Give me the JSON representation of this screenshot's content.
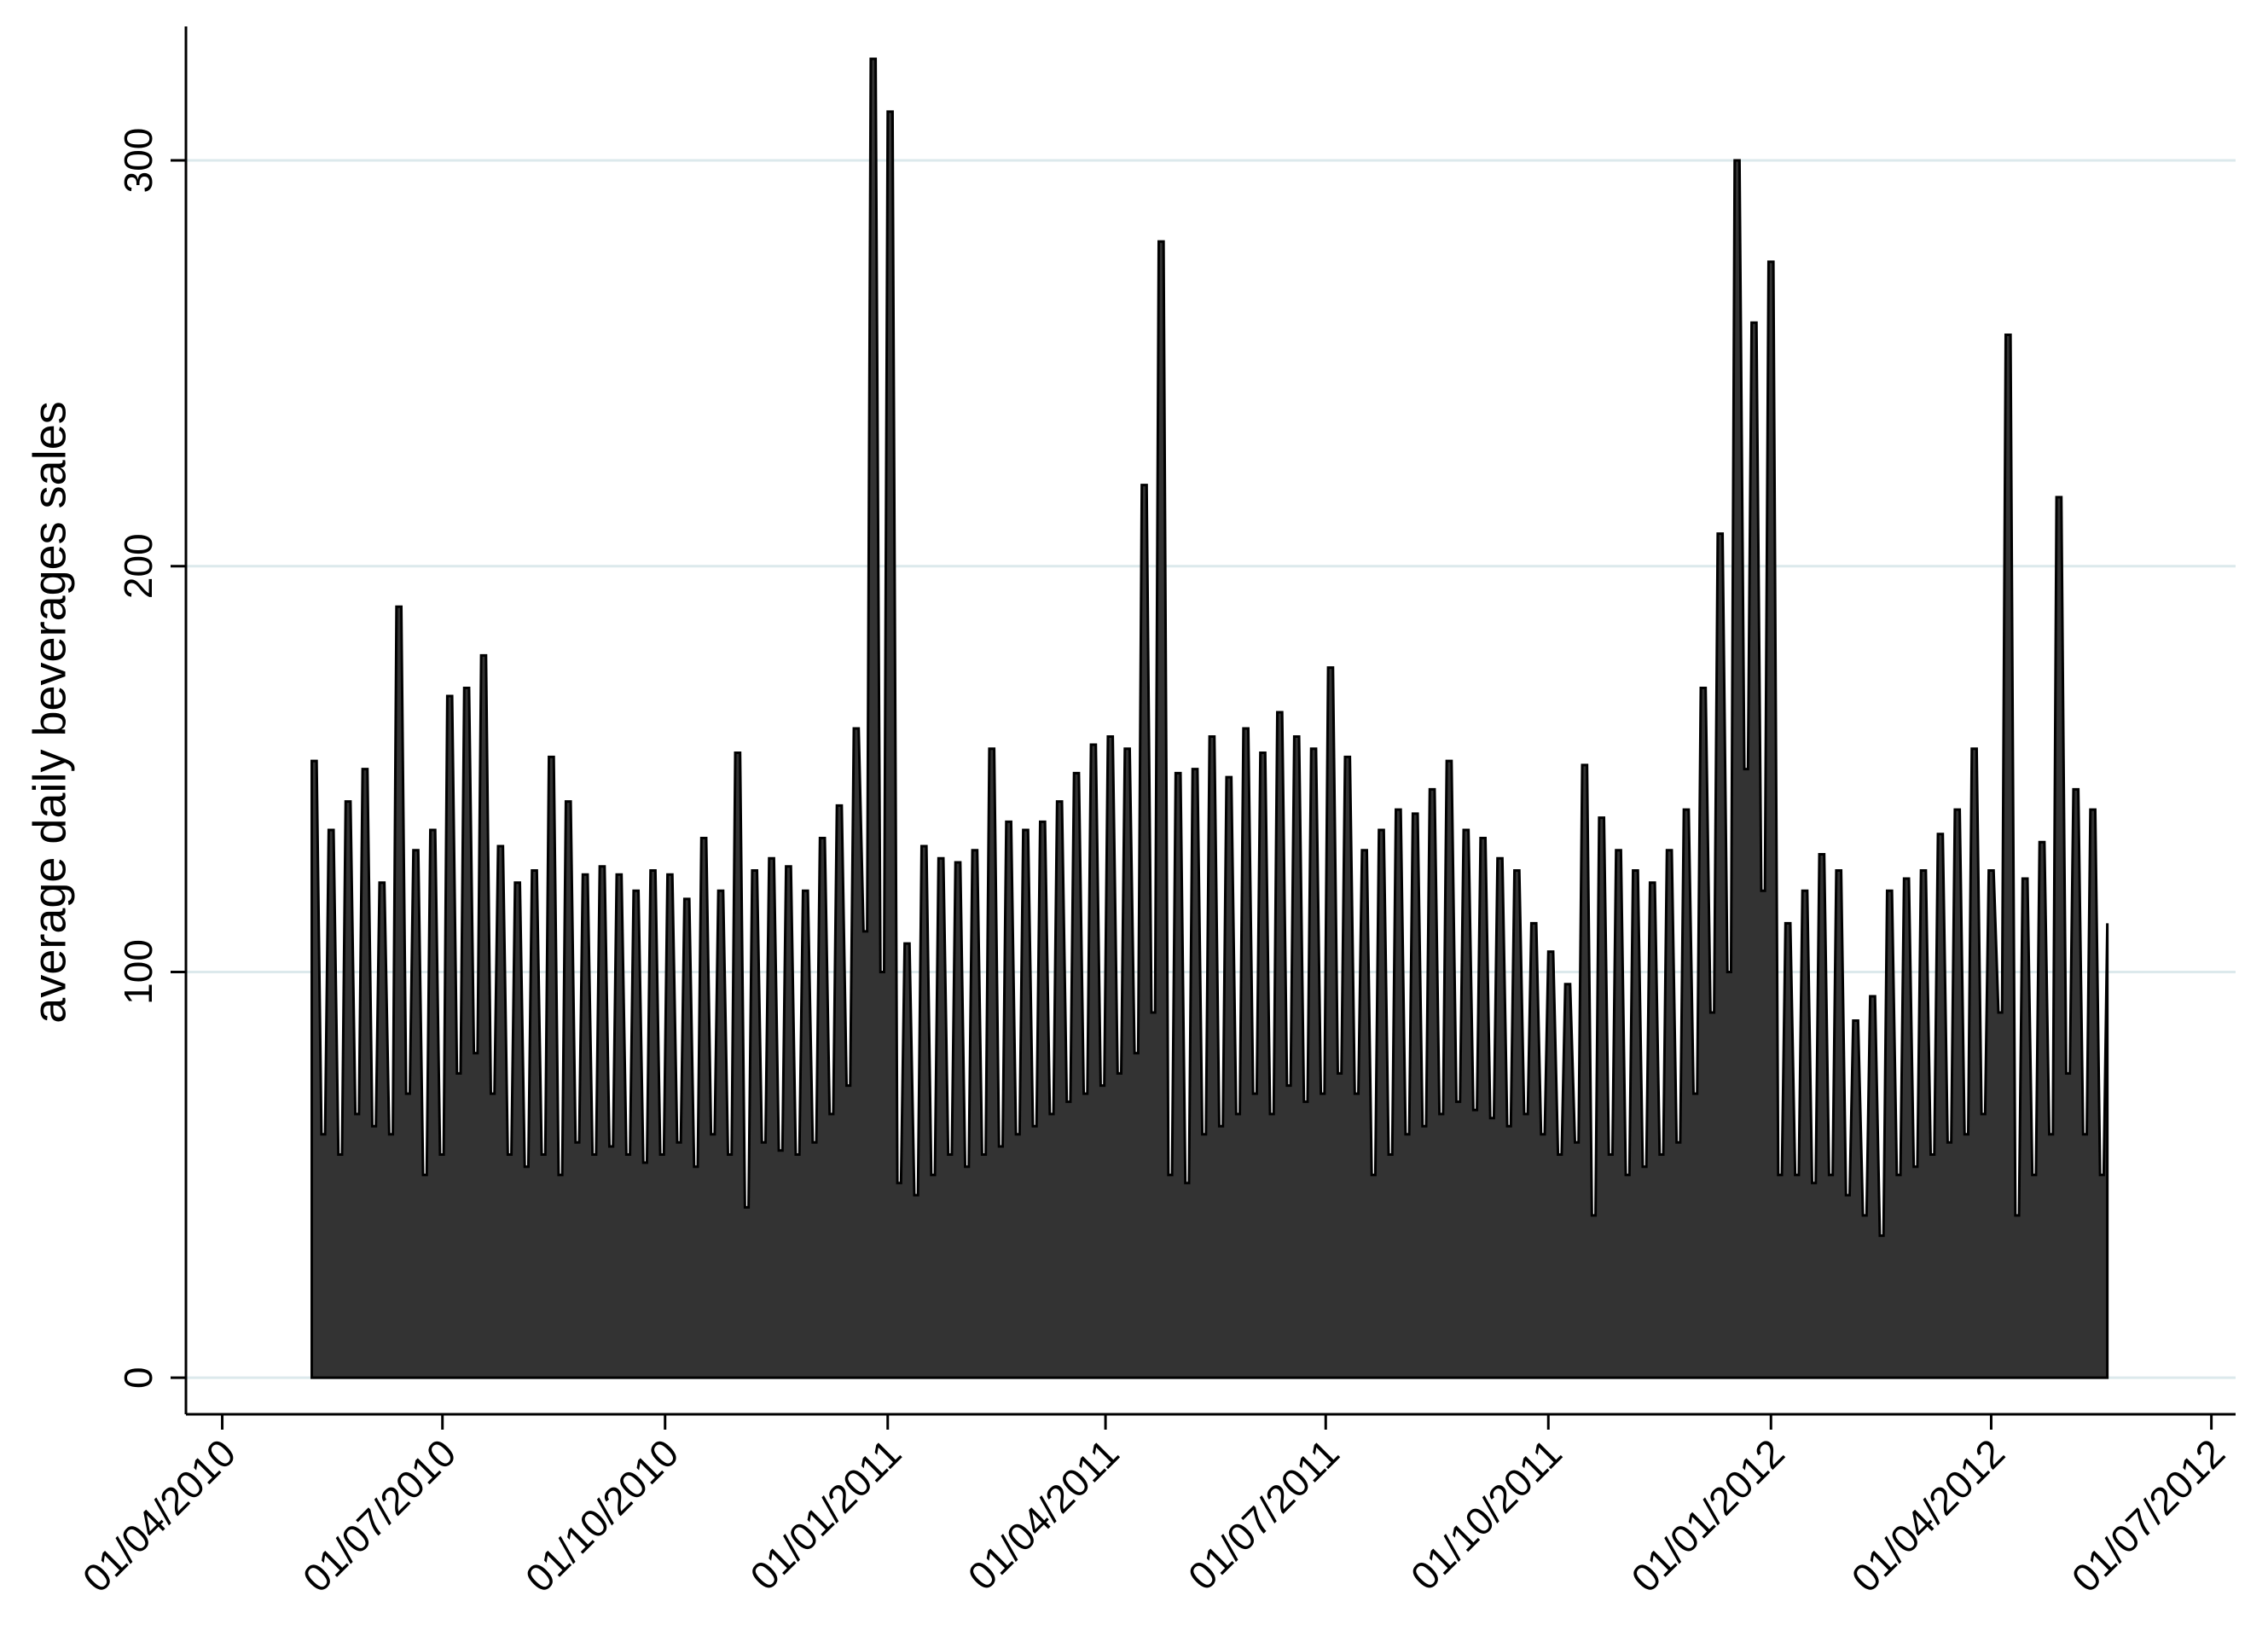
{
  "chart_data": {
    "type": "area",
    "y_label": "average daily beverages sales",
    "xlim": [
      "2010-03-17",
      "2012-07-11"
    ],
    "xticks": [
      {
        "value": "2010-04-01",
        "label": "01/04/2010"
      },
      {
        "value": "2010-07-01",
        "label": "01/07/2010"
      },
      {
        "value": "2010-10-01",
        "label": "01/10/2010"
      },
      {
        "value": "2011-01-01",
        "label": "01/01/2011"
      },
      {
        "value": "2011-04-01",
        "label": "01/04/2011"
      },
      {
        "value": "2011-07-01",
        "label": "01/07/2011"
      },
      {
        "value": "2011-10-01",
        "label": "01/10/2011"
      },
      {
        "value": "2012-01-01",
        "label": "01/01/2012"
      },
      {
        "value": "2012-04-01",
        "label": "01/04/2012"
      },
      {
        "value": "2012-07-01",
        "label": "01/07/2012"
      }
    ],
    "ylim": [
      -9,
      333
    ],
    "yticks": [
      0,
      100,
      200,
      300
    ],
    "grid": true,
    "grid_color": "#dce9ec",
    "x": [
      "2010-05-08",
      "2010-05-12",
      "2010-05-15",
      "2010-05-19",
      "2010-05-22",
      "2010-05-26",
      "2010-05-29",
      "2010-06-02",
      "2010-06-05",
      "2010-06-09",
      "2010-06-12",
      "2010-06-16",
      "2010-06-19",
      "2010-06-23",
      "2010-06-26",
      "2010-06-30",
      "2010-07-03",
      "2010-07-07",
      "2010-07-10",
      "2010-07-14",
      "2010-07-17",
      "2010-07-21",
      "2010-07-24",
      "2010-07-28",
      "2010-07-31",
      "2010-08-04",
      "2010-08-07",
      "2010-08-11",
      "2010-08-14",
      "2010-08-18",
      "2010-08-21",
      "2010-08-25",
      "2010-08-28",
      "2010-09-01",
      "2010-09-04",
      "2010-09-08",
      "2010-09-11",
      "2010-09-15",
      "2010-09-18",
      "2010-09-22",
      "2010-09-25",
      "2010-09-29",
      "2010-10-02",
      "2010-10-06",
      "2010-10-09",
      "2010-10-13",
      "2010-10-16",
      "2010-10-20",
      "2010-10-23",
      "2010-10-27",
      "2010-10-30",
      "2010-11-03",
      "2010-11-06",
      "2010-11-10",
      "2010-11-13",
      "2010-11-17",
      "2010-11-20",
      "2010-11-24",
      "2010-11-27",
      "2010-12-01",
      "2010-12-04",
      "2010-12-08",
      "2010-12-11",
      "2010-12-15",
      "2010-12-18",
      "2010-12-22",
      "2010-12-25",
      "2010-12-29",
      "2011-01-01",
      "2011-01-05",
      "2011-01-08",
      "2011-01-12",
      "2011-01-15",
      "2011-01-19",
      "2011-01-22",
      "2011-01-26",
      "2011-01-29",
      "2011-02-02",
      "2011-02-05",
      "2011-02-09",
      "2011-02-12",
      "2011-02-16",
      "2011-02-19",
      "2011-02-23",
      "2011-02-26",
      "2011-03-02",
      "2011-03-05",
      "2011-03-09",
      "2011-03-12",
      "2011-03-16",
      "2011-03-19",
      "2011-03-23",
      "2011-03-26",
      "2011-03-30",
      "2011-04-02",
      "2011-04-06",
      "2011-04-09",
      "2011-04-13",
      "2011-04-16",
      "2011-04-20",
      "2011-04-23",
      "2011-04-27",
      "2011-04-30",
      "2011-05-04",
      "2011-05-07",
      "2011-05-11",
      "2011-05-14",
      "2011-05-18",
      "2011-05-21",
      "2011-05-25",
      "2011-05-28",
      "2011-06-01",
      "2011-06-04",
      "2011-06-08",
      "2011-06-11",
      "2011-06-15",
      "2011-06-18",
      "2011-06-22",
      "2011-06-25",
      "2011-06-29",
      "2011-07-02",
      "2011-07-06",
      "2011-07-09",
      "2011-07-13",
      "2011-07-16",
      "2011-07-20",
      "2011-07-23",
      "2011-07-27",
      "2011-07-30",
      "2011-08-03",
      "2011-08-06",
      "2011-08-10",
      "2011-08-13",
      "2011-08-17",
      "2011-08-20",
      "2011-08-24",
      "2011-08-27",
      "2011-08-31",
      "2011-09-03",
      "2011-09-07",
      "2011-09-10",
      "2011-09-14",
      "2011-09-17",
      "2011-09-21",
      "2011-09-24",
      "2011-09-28",
      "2011-10-01",
      "2011-10-05",
      "2011-10-08",
      "2011-10-12",
      "2011-10-15",
      "2011-10-19",
      "2011-10-22",
      "2011-10-26",
      "2011-10-29",
      "2011-11-02",
      "2011-11-05",
      "2011-11-09",
      "2011-11-12",
      "2011-11-16",
      "2011-11-19",
      "2011-11-23",
      "2011-11-26",
      "2011-11-30",
      "2011-12-03",
      "2011-12-07",
      "2011-12-10",
      "2011-12-14",
      "2011-12-17",
      "2011-12-21",
      "2011-12-24",
      "2011-12-28",
      "2011-12-31",
      "2012-01-04",
      "2012-01-07",
      "2012-01-11",
      "2012-01-14",
      "2012-01-18",
      "2012-01-21",
      "2012-01-25",
      "2012-01-28",
      "2012-02-01",
      "2012-02-04",
      "2012-02-08",
      "2012-02-11",
      "2012-02-15",
      "2012-02-18",
      "2012-02-22",
      "2012-02-25",
      "2012-02-29",
      "2012-03-03",
      "2012-03-07",
      "2012-03-10",
      "2012-03-14",
      "2012-03-17",
      "2012-03-21",
      "2012-03-24",
      "2012-03-28",
      "2012-03-31",
      "2012-04-04",
      "2012-04-07",
      "2012-04-11",
      "2012-04-14",
      "2012-04-18",
      "2012-04-21",
      "2012-04-25",
      "2012-04-28",
      "2012-05-02",
      "2012-05-05",
      "2012-05-09",
      "2012-05-12",
      "2012-05-16",
      "2012-05-19"
    ],
    "series": [
      {
        "color": "#333333",
        "values": [
          152,
          60,
          135,
          55,
          142,
          65,
          150,
          62,
          122,
          60,
          190,
          70,
          130,
          50,
          135,
          55,
          168,
          75,
          170,
          80,
          178,
          70,
          131,
          55,
          122,
          52,
          125,
          55,
          153,
          50,
          142,
          58,
          124,
          55,
          126,
          57,
          124,
          55,
          120,
          53,
          125,
          55,
          124,
          58,
          118,
          52,
          133,
          60,
          120,
          55,
          154,
          42,
          125,
          58,
          128,
          56,
          126,
          55,
          120,
          58,
          133,
          65,
          141,
          72,
          160,
          110,
          325,
          100,
          312,
          48,
          107,
          45,
          131,
          50,
          128,
          55,
          127,
          52,
          130,
          55,
          155,
          57,
          137,
          60,
          135,
          62,
          137,
          65,
          142,
          68,
          149,
          70,
          156,
          72,
          158,
          75,
          155,
          80,
          220,
          90,
          280,
          50,
          149,
          48,
          150,
          60,
          158,
          62,
          148,
          65,
          160,
          70,
          154,
          65,
          164,
          72,
          158,
          68,
          155,
          70,
          175,
          75,
          153,
          70,
          130,
          50,
          135,
          55,
          140,
          60,
          139,
          62,
          145,
          65,
          152,
          68,
          135,
          66,
          133,
          64,
          128,
          62,
          125,
          65,
          112,
          60,
          105,
          55,
          97,
          58,
          151,
          40,
          138,
          55,
          130,
          50,
          125,
          52,
          122,
          55,
          130,
          58,
          140,
          70,
          170,
          90,
          208,
          100,
          300,
          150,
          260,
          120,
          275,
          50,
          112,
          50,
          120,
          48,
          129,
          50,
          125,
          45,
          88,
          40,
          94,
          35,
          120,
          50,
          123,
          52,
          125,
          55,
          134,
          58,
          140,
          60,
          155,
          65,
          125,
          90,
          257,
          40,
          123,
          50,
          132,
          60,
          217,
          75,
          145,
          60,
          140,
          50,
          112
        ]
      }
    ]
  }
}
